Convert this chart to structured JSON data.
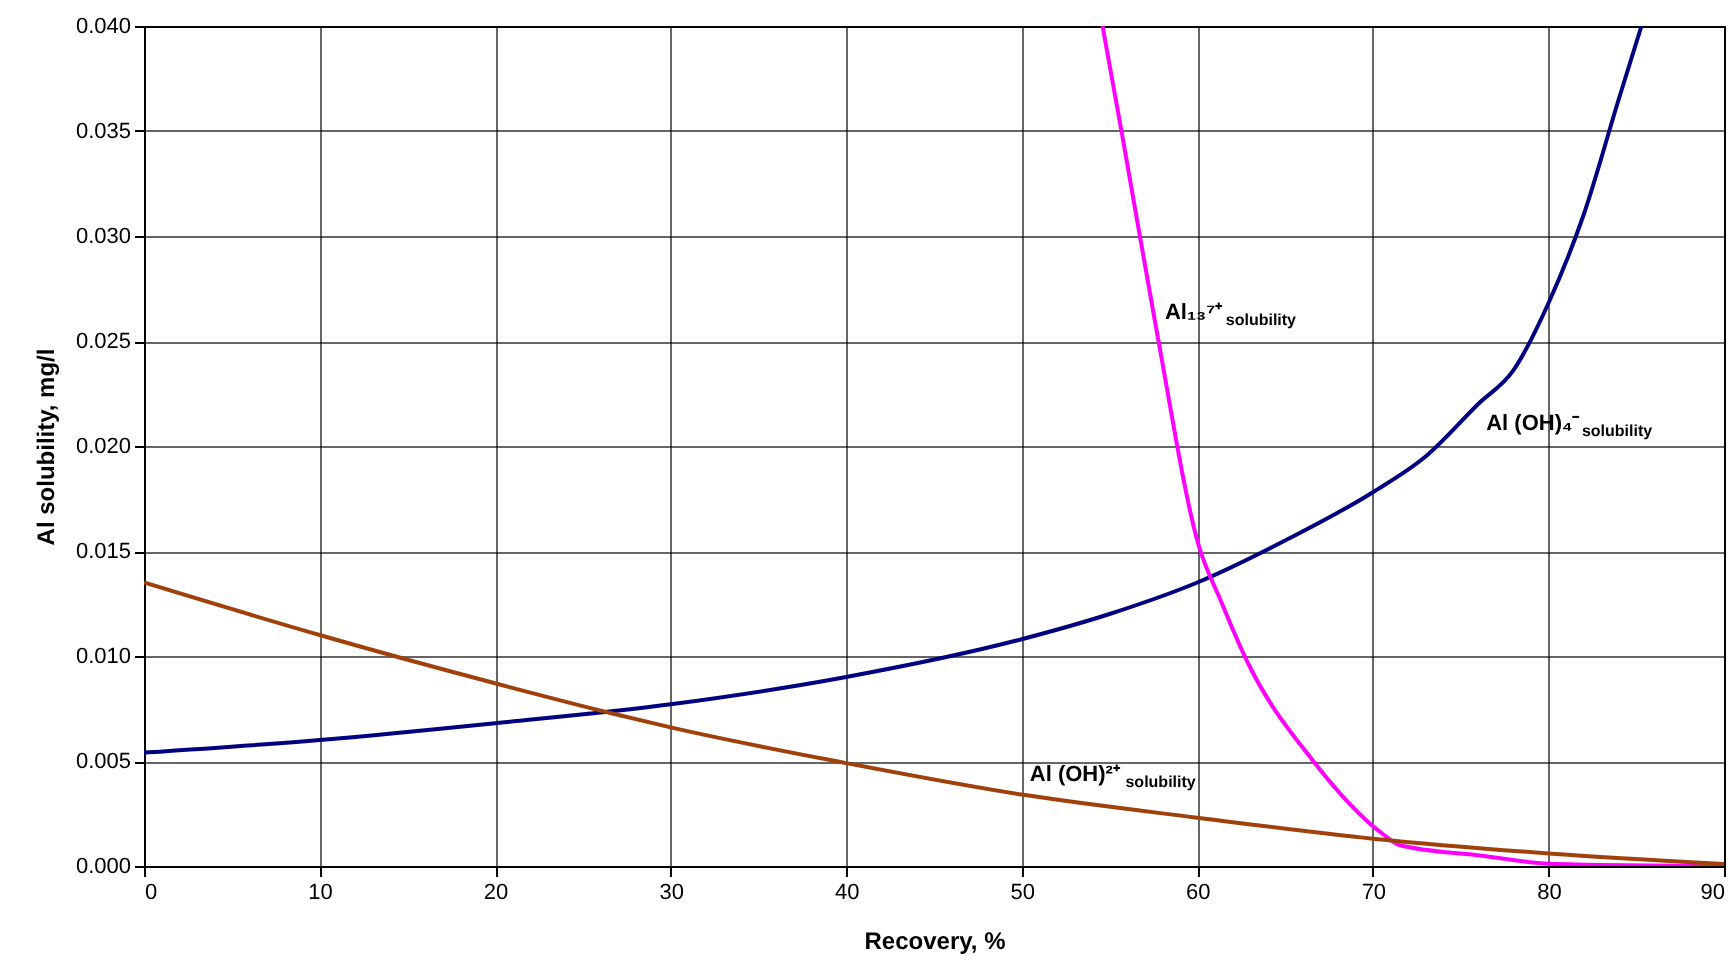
{
  "chart_data": {
    "type": "line",
    "xlabel": "Recovery, %",
    "ylabel": "Al solubility, mg/l",
    "xlim": [
      0,
      90
    ],
    "xticks": [
      0,
      10,
      20,
      30,
      40,
      50,
      60,
      70,
      80,
      90
    ],
    "ylim": [
      0,
      0.04
    ],
    "yticks": [
      {
        "value": 0,
        "label": "0.000"
      },
      {
        "value": 0.005,
        "label": "0.005"
      },
      {
        "value": 0.01,
        "label": "0.010"
      },
      {
        "value": 0.015,
        "label": "0.015"
      },
      {
        "value": 0.02,
        "label": "0.020"
      },
      {
        "value": 0.025,
        "label": "0.025"
      },
      {
        "value": 0.03,
        "label": "0.030"
      },
      {
        "value": 0.035,
        "label": "0.035"
      },
      {
        "value": 0.04,
        "label": "0.040"
      }
    ],
    "grid": true,
    "legend": false,
    "marker": "none",
    "line_style": "solid",
    "series": [
      {
        "color": "#000080",
        "x": [
          0,
          10,
          20,
          30,
          40,
          50,
          55,
          60,
          65,
          70,
          73,
          76,
          78,
          80,
          82,
          84,
          85.3
        ],
        "values": [
          0.0054,
          0.006,
          0.0068,
          0.0077,
          0.009,
          0.0108,
          0.012,
          0.0135,
          0.0155,
          0.0178,
          0.0195,
          0.022,
          0.0236,
          0.0268,
          0.031,
          0.0365,
          0.04
        ]
      },
      {
        "color": "#ff00ff",
        "x": [
          54.6,
          55.7,
          57.7,
          60.1,
          61.3,
          62.8,
          66.6,
          70.6,
          71.5,
          76.1,
          80.3,
          90
        ],
        "values": [
          0.04,
          0.0349,
          0.0254,
          0.0152,
          0.0127,
          0.0098,
          0.005,
          0.0015,
          0.001,
          0.0005,
          0.0001,
          0.0
        ]
      },
      {
        "color": "#a0400a",
        "x": [
          0,
          10,
          20,
          26.5,
          30,
          40,
          50,
          60,
          70,
          80,
          90
        ],
        "values": [
          0.0135,
          0.011,
          0.0087,
          0.0073,
          0.0066,
          0.0049,
          0.0034,
          0.0023,
          0.0013,
          0.0006,
          0.0001
        ]
      }
    ],
    "annotations": [
      {
        "text": "Al₁₃⁷⁺$_{solubility}$",
        "x": 57.7,
        "y": 0.0254
      },
      {
        "text": "Al (OH)₄⁻$_{solubility}$",
        "x": 76,
        "y": 0.022
      },
      {
        "text": "Al (OH)²⁺$_{solubility}$",
        "x": 50,
        "y": 0.0034
      }
    ]
  }
}
